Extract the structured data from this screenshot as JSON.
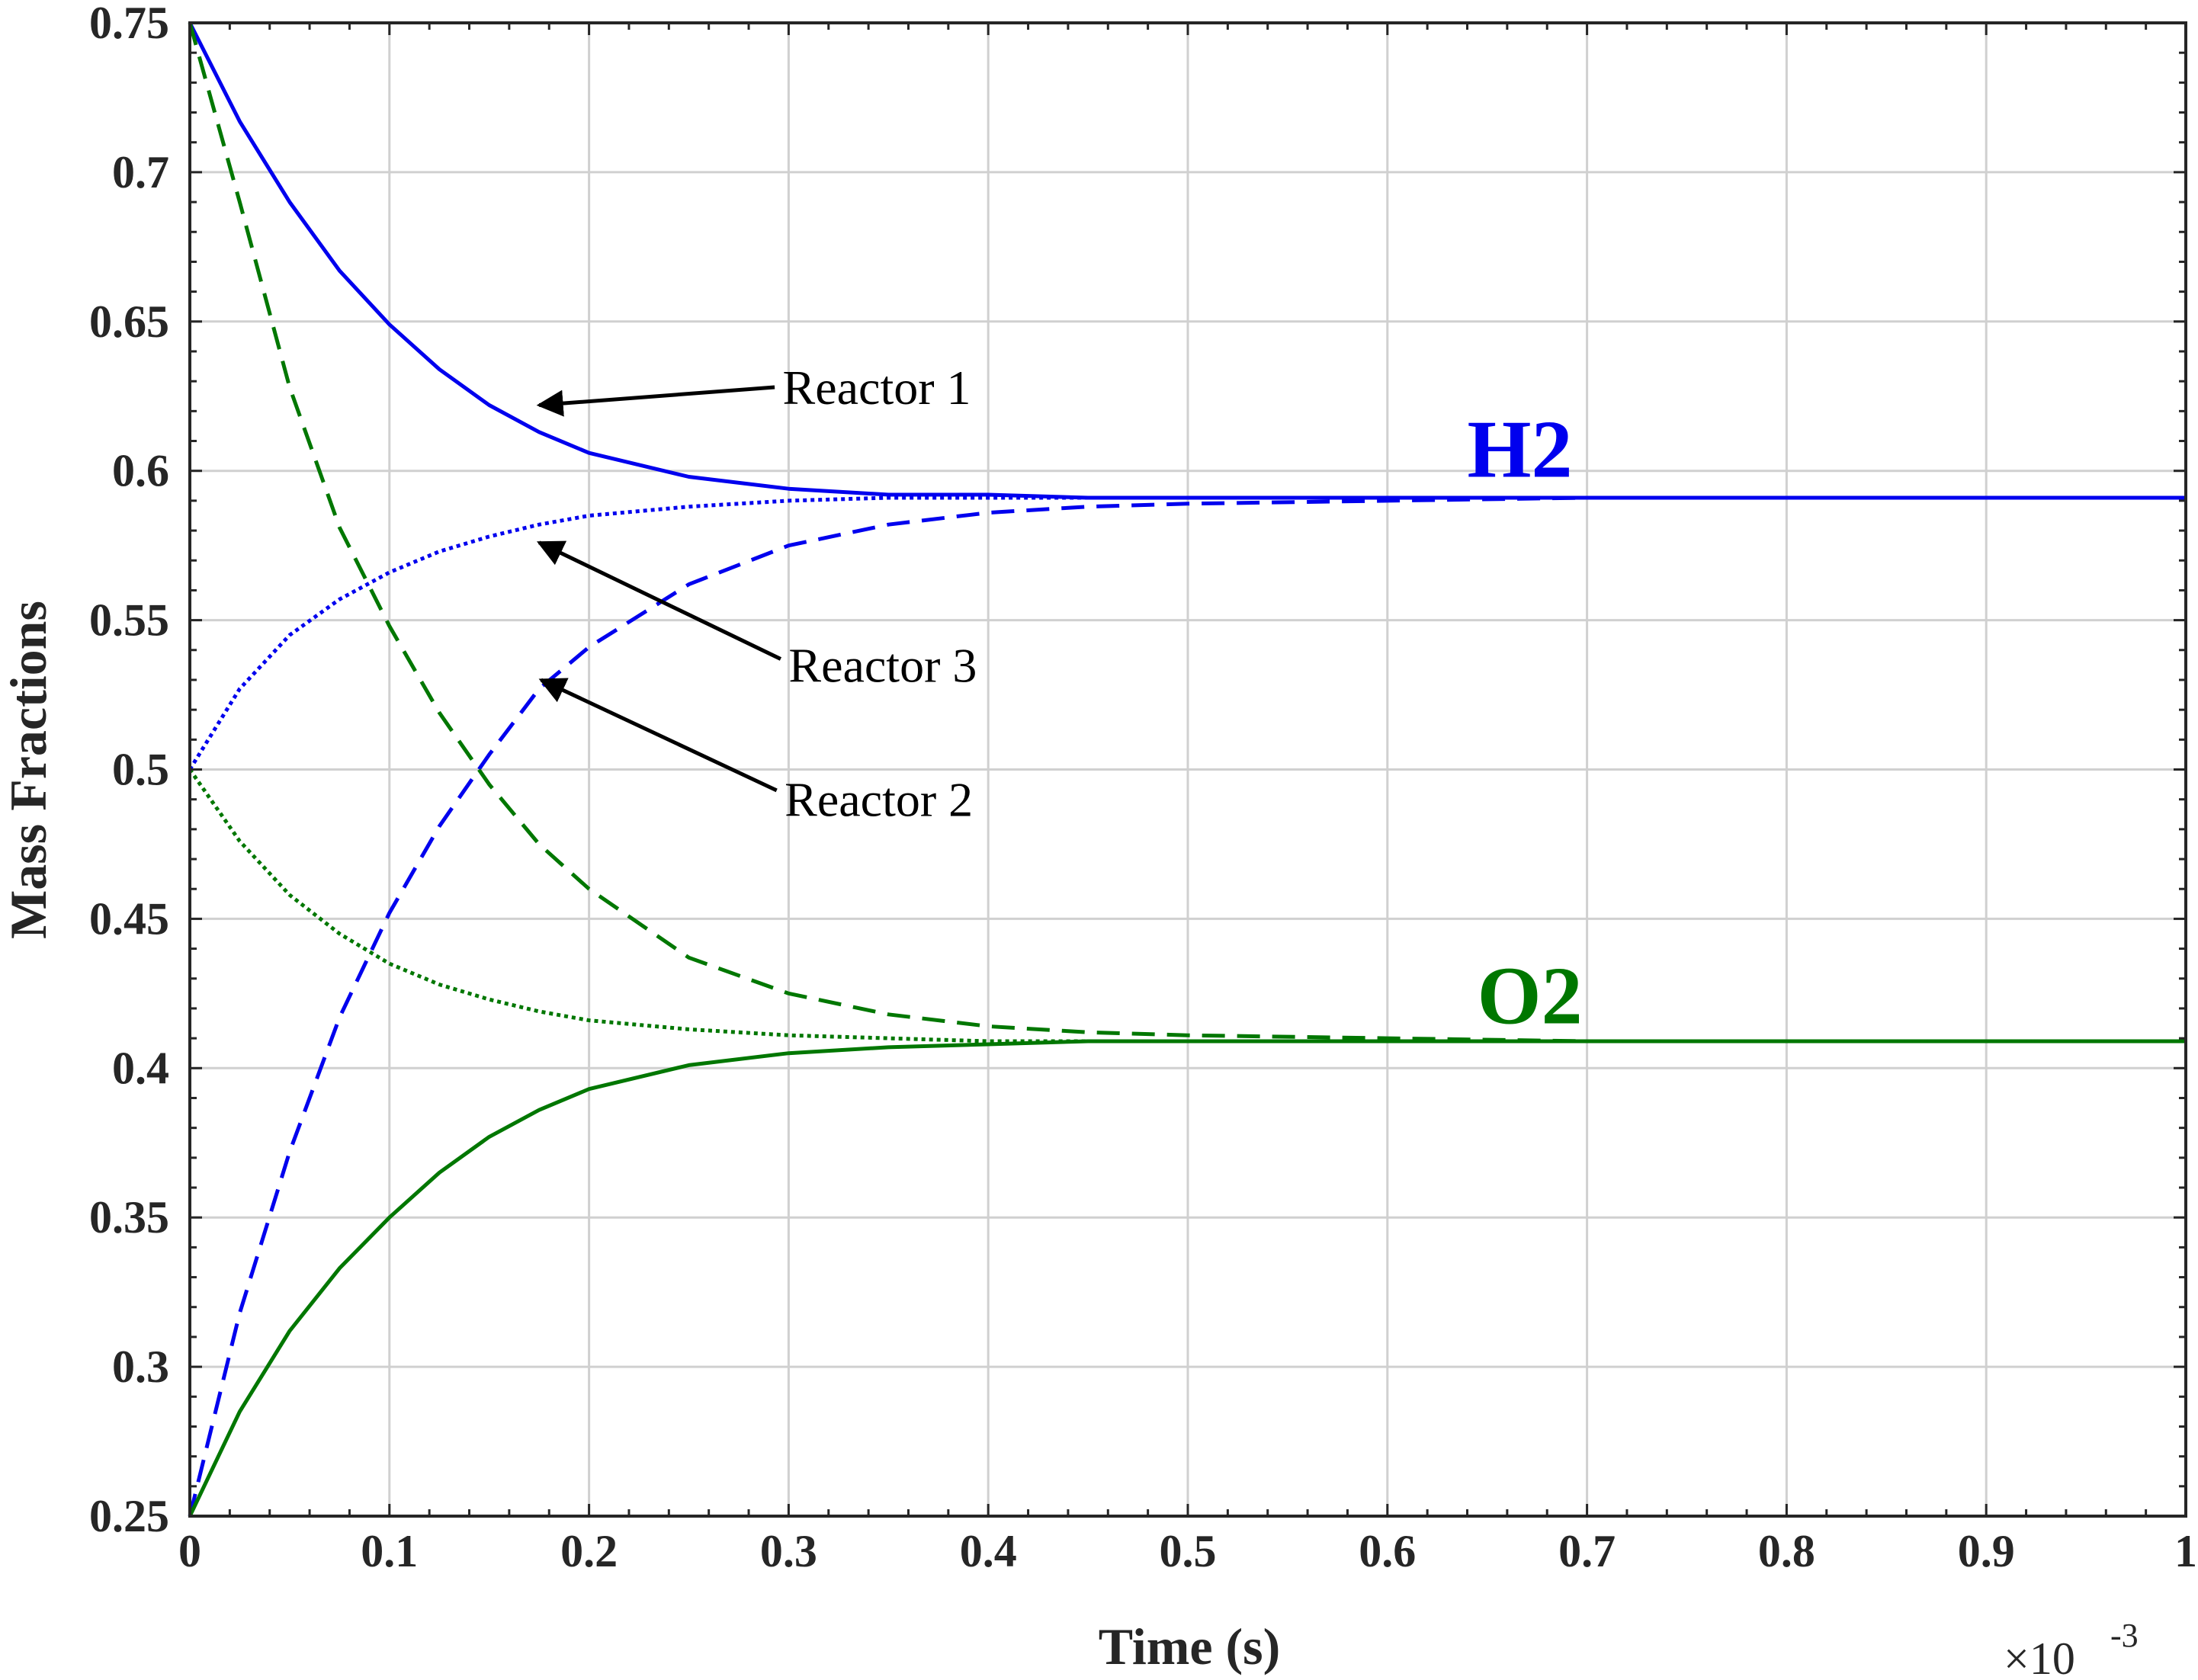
{
  "chart_data": {
    "type": "line",
    "xlabel": "Time (s)",
    "ylabel": "Mass Fractions",
    "x_multiplier_base": "×10",
    "x_multiplier_exp": "-3",
    "xlim": [
      0,
      1
    ],
    "ylim": [
      0.25,
      0.75
    ],
    "xticks": [
      0,
      0.1,
      0.2,
      0.3,
      0.4,
      0.5,
      0.6,
      0.7,
      0.8,
      0.9,
      1
    ],
    "xtick_labels": [
      "0",
      "0.1",
      "0.2",
      "0.3",
      "0.4",
      "0.5",
      "0.6",
      "0.7",
      "0.8",
      "0.9",
      "1"
    ],
    "yticks": [
      0.25,
      0.3,
      0.35,
      0.4,
      0.45,
      0.5,
      0.55,
      0.6,
      0.65,
      0.7,
      0.75
    ],
    "ytick_labels": [
      "0.25",
      "0.3",
      "0.35",
      "0.4",
      "0.45",
      "0.5",
      "0.55",
      "0.6",
      "0.65",
      "0.7",
      "0.75"
    ],
    "grid": true,
    "x": [
      0,
      0.025,
      0.05,
      0.075,
      0.1,
      0.125,
      0.15,
      0.175,
      0.2,
      0.25,
      0.3,
      0.35,
      0.4,
      0.45,
      0.5,
      0.6,
      0.7,
      0.8,
      0.9,
      1.0
    ],
    "series": [
      {
        "species": "H2",
        "reactor": "Reactor 1",
        "color": "#0000ee",
        "dash": "solid",
        "values": [
          0.75,
          0.717,
          0.69,
          0.667,
          0.649,
          0.634,
          0.622,
          0.613,
          0.606,
          0.598,
          0.594,
          0.592,
          0.592,
          0.591,
          0.591,
          0.591,
          0.591,
          0.591,
          0.591,
          0.591
        ]
      },
      {
        "species": "H2",
        "reactor": "Reactor 2",
        "color": "#0000ee",
        "dash": "dashed",
        "values": [
          0.25,
          0.318,
          0.372,
          0.417,
          0.452,
          0.481,
          0.505,
          0.527,
          0.541,
          0.562,
          0.575,
          0.582,
          0.586,
          0.588,
          0.589,
          0.59,
          0.591,
          0.591,
          0.591,
          0.591
        ]
      },
      {
        "species": "H2",
        "reactor": "Reactor 3",
        "color": "#0000ee",
        "dash": "dotted",
        "values": [
          0.5,
          0.527,
          0.545,
          0.557,
          0.566,
          0.573,
          0.578,
          0.582,
          0.585,
          0.588,
          0.59,
          0.591,
          0.591,
          0.591,
          0.591,
          0.591,
          0.591,
          0.591,
          0.591,
          0.591
        ]
      },
      {
        "species": "O2",
        "reactor": "Reactor 1",
        "color": "#007700",
        "dash": "solid",
        "values": [
          0.25,
          0.285,
          0.312,
          0.333,
          0.35,
          0.365,
          0.377,
          0.386,
          0.393,
          0.401,
          0.405,
          0.407,
          0.408,
          0.409,
          0.409,
          0.409,
          0.409,
          0.409,
          0.409,
          0.409
        ]
      },
      {
        "species": "O2",
        "reactor": "Reactor 2",
        "color": "#007700",
        "dash": "dashed",
        "values": [
          0.75,
          0.69,
          0.628,
          0.581,
          0.548,
          0.519,
          0.495,
          0.475,
          0.46,
          0.437,
          0.425,
          0.418,
          0.414,
          0.412,
          0.411,
          0.41,
          0.409,
          0.409,
          0.409,
          0.409
        ]
      },
      {
        "species": "O2",
        "reactor": "Reactor 3",
        "color": "#007700",
        "dash": "dotted",
        "values": [
          0.5,
          0.476,
          0.458,
          0.445,
          0.435,
          0.428,
          0.423,
          0.419,
          0.416,
          0.413,
          0.411,
          0.41,
          0.409,
          0.409,
          0.409,
          0.409,
          0.409,
          0.409,
          0.409,
          0.409
        ]
      }
    ],
    "species_labels": [
      {
        "text": "H2",
        "color": "#0000ee",
        "x": 0.64,
        "y": 0.598
      },
      {
        "text": "O2",
        "color": "#007700",
        "x": 0.645,
        "y": 0.415
      }
    ],
    "annotations": [
      {
        "text": "Reactor 1",
        "text_x": 0.297,
        "text_y": 0.628,
        "arrow_from": [
          0.293,
          0.628
        ],
        "arrow_to": [
          0.175,
          0.622
        ]
      },
      {
        "text": "Reactor 3",
        "text_x": 0.3,
        "text_y": 0.535,
        "arrow_from": [
          0.296,
          0.537
        ],
        "arrow_to": [
          0.175,
          0.576
        ]
      },
      {
        "text": "Reactor 2",
        "text_x": 0.298,
        "text_y": 0.49,
        "arrow_from": [
          0.294,
          0.493
        ],
        "arrow_to": [
          0.176,
          0.53
        ]
      }
    ]
  }
}
